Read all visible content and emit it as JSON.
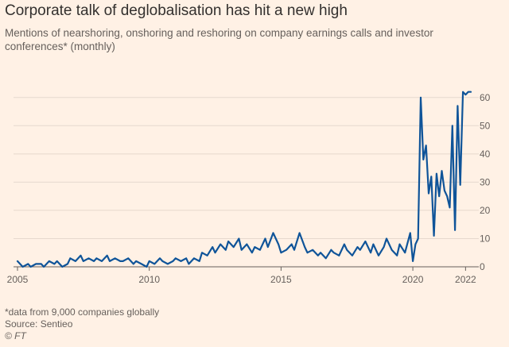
{
  "colors": {
    "background": "#fff1e5",
    "line": "#0f5499",
    "grid": "#e6d9ce",
    "axis": "#66605c",
    "text": "#33302e"
  },
  "chart_data": {
    "type": "line",
    "title": "Corporate talk of deglobalisation has hit a new high",
    "subtitle": "Mentions of nearshoring, onshoring and reshoring on company earnings calls and investor conferences* (monthly)",
    "xlabel": "",
    "ylabel": "",
    "x_ticks": [
      2005,
      2010,
      2015,
      2020,
      2022
    ],
    "y_ticks": [
      0,
      10,
      20,
      30,
      40,
      50,
      60
    ],
    "xlim": [
      2005,
      2022.2
    ],
    "ylim": [
      0,
      65
    ],
    "series": [
      {
        "name": "Mentions (monthly)",
        "x": [
          2005.0,
          2005.2,
          2005.4,
          2005.5,
          2005.7,
          2005.9,
          2006.0,
          2006.2,
          2006.4,
          2006.5,
          2006.7,
          2006.9,
          2007.0,
          2007.2,
          2007.4,
          2007.5,
          2007.7,
          2007.9,
          2008.0,
          2008.2,
          2008.4,
          2008.5,
          2008.7,
          2008.9,
          2009.0,
          2009.2,
          2009.4,
          2009.5,
          2009.7,
          2009.9,
          2010.0,
          2010.2,
          2010.4,
          2010.5,
          2010.7,
          2010.9,
          2011.0,
          2011.2,
          2011.4,
          2011.5,
          2011.7,
          2011.9,
          2012.0,
          2012.2,
          2012.4,
          2012.5,
          2012.7,
          2012.9,
          2013.0,
          2013.2,
          2013.4,
          2013.5,
          2013.7,
          2013.9,
          2014.0,
          2014.2,
          2014.4,
          2014.5,
          2014.7,
          2014.9,
          2015.0,
          2015.2,
          2015.4,
          2015.5,
          2015.7,
          2015.9,
          2016.0,
          2016.2,
          2016.4,
          2016.5,
          2016.7,
          2016.9,
          2017.0,
          2017.2,
          2017.4,
          2017.5,
          2017.7,
          2017.9,
          2018.0,
          2018.2,
          2018.4,
          2018.5,
          2018.7,
          2018.9,
          2019.0,
          2019.2,
          2019.4,
          2019.5,
          2019.7,
          2019.9,
          2020.0,
          2020.1,
          2020.2,
          2020.3,
          2020.4,
          2020.5,
          2020.6,
          2020.7,
          2020.8,
          2020.9,
          2021.0,
          2021.1,
          2021.2,
          2021.3,
          2021.4,
          2021.5,
          2021.6,
          2021.7,
          2021.8,
          2021.9,
          2022.0,
          2022.1,
          2022.2
        ],
        "values": [
          2,
          0,
          1,
          0,
          1,
          1,
          0,
          2,
          1,
          2,
          0,
          1,
          3,
          2,
          4,
          2,
          3,
          2,
          3,
          2,
          4,
          2,
          3,
          2,
          2,
          3,
          1,
          2,
          1,
          0,
          2,
          1,
          3,
          2,
          1,
          2,
          3,
          2,
          3,
          1,
          3,
          2,
          5,
          4,
          7,
          5,
          8,
          6,
          9,
          7,
          10,
          6,
          8,
          5,
          7,
          6,
          10,
          7,
          12,
          8,
          5,
          6,
          8,
          6,
          12,
          7,
          5,
          6,
          4,
          5,
          3,
          6,
          5,
          4,
          8,
          6,
          4,
          7,
          6,
          9,
          5,
          8,
          4,
          7,
          10,
          6,
          4,
          8,
          5,
          12,
          2,
          8,
          10,
          60,
          38,
          43,
          26,
          32,
          11,
          33,
          25,
          34,
          27,
          25,
          21,
          50,
          13,
          57,
          29,
          62,
          61,
          62,
          62
        ]
      }
    ],
    "annotations": {
      "note": "*data from 9,000 companies globally",
      "source": "Source: Sentieo",
      "copyright": "© FT"
    }
  }
}
